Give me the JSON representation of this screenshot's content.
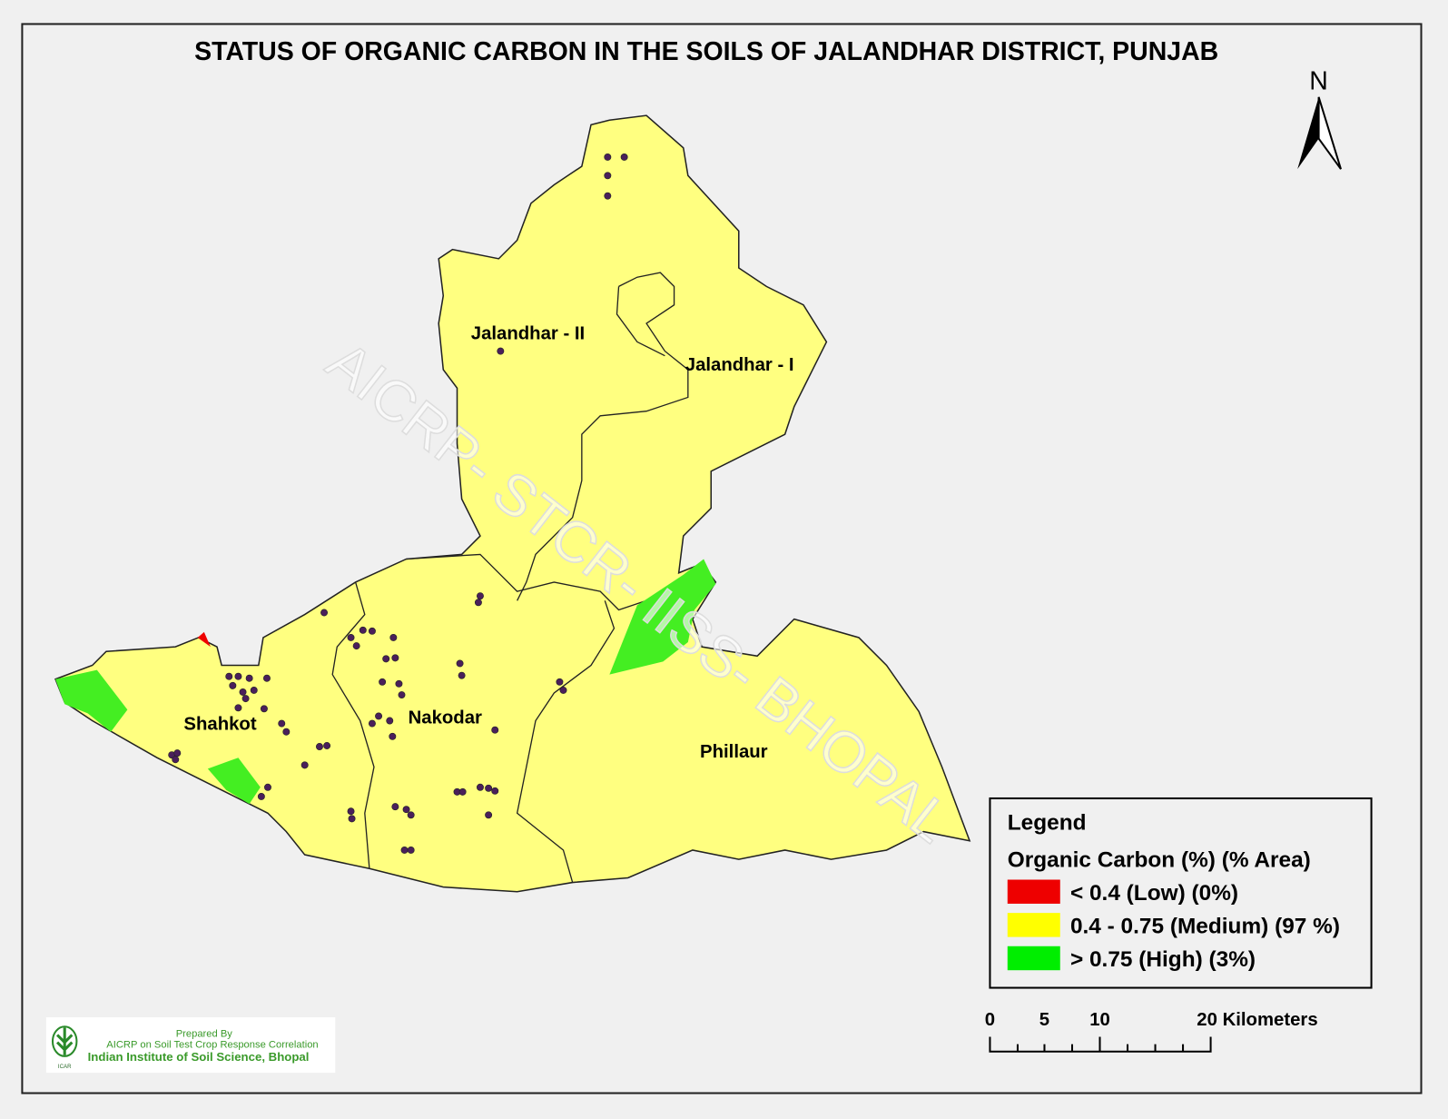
{
  "title": "STATUS OF ORGANIC CARBON  IN THE SOILS OF JALANDHAR DISTRICT, PUNJAB",
  "north_arrow": {
    "label": "N"
  },
  "watermark": "AICRP- STCR- IISS- BHOPAL",
  "blocks": [
    "Jalandhar - II",
    "Jalandhar - I",
    "Shahkot",
    "Nakodar",
    "Phillaur"
  ],
  "legend": {
    "heading": "Legend",
    "subtitle": "Organic Carbon (%) (% Area)",
    "items": [
      {
        "label": "< 0.4 (Low) (0%)",
        "color": "#ee0000"
      },
      {
        "label": "0.4 - 0.75 (Medium) (97 %)",
        "color": "#ffff00"
      },
      {
        "label": "> 0.75 (High) (3%)",
        "color": "#00ee00"
      }
    ]
  },
  "map_colors": {
    "medium_fill": "#ffff80",
    "high_fill": "#44ee22",
    "low_fill": "#ee0000",
    "sample_points": "#4a1f5a"
  },
  "scale_bar": {
    "labels": [
      "0",
      "5",
      "10",
      "20 Kilometers"
    ]
  },
  "credit": {
    "line1": "Prepared By",
    "line2": "AICRP on Soil Test Crop Response Correlation",
    "line3": "Indian Institute of Soil Science, Bhopal",
    "logo_text": "ICAR"
  }
}
